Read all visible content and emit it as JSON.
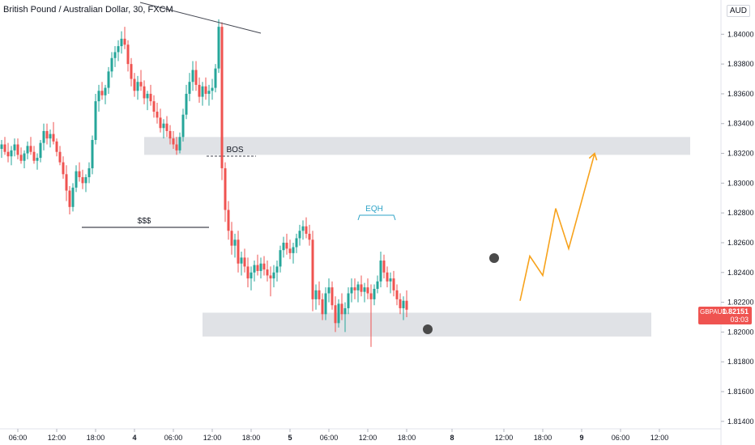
{
  "chart_data": {
    "type": "candlestick",
    "title": "British Pound / Australian Dollar, 30, FXCM",
    "symbol": "GBPAUD",
    "currency": "AUD",
    "last_price": "1.82151",
    "countdown": "03:03",
    "ylim": [
      1.8135,
      1.8423
    ],
    "y_ticks": [
      "1.84000",
      "1.83800",
      "1.83600",
      "1.83400",
      "1.83200",
      "1.83000",
      "1.82800",
      "1.82600",
      "1.82400",
      "1.82200",
      "1.82000",
      "1.81800",
      "1.81600",
      "1.81400"
    ],
    "y_tick_values": [
      1.84,
      1.838,
      1.836,
      1.834,
      1.832,
      1.83,
      1.828,
      1.826,
      1.824,
      1.822,
      1.82,
      1.818,
      1.816,
      1.814
    ],
    "x_ticks": [
      "06:00",
      "12:00",
      "18:00",
      "4",
      "06:00",
      "12:00",
      "18:00",
      "5",
      "06:00",
      "12:00",
      "18:00",
      "8",
      "12:00",
      "18:00",
      "9",
      "06:00",
      "12:00"
    ],
    "x_tick_index": [
      5,
      17,
      29,
      41,
      53,
      65,
      77,
      89,
      101,
      113,
      125,
      139,
      155,
      167,
      179,
      191,
      203
    ],
    "zones": [
      {
        "label": "BOS zone",
        "from": 1.8319,
        "to": 1.8331
      },
      {
        "label": "demand zone",
        "from": 1.8197,
        "to": 1.8213
      }
    ],
    "annotations": [
      "BOS",
      "EQH",
      "$$$"
    ],
    "projection_path": [
      [
        160,
        1.8221
      ],
      [
        163,
        1.8251
      ],
      [
        167,
        1.8238
      ],
      [
        171,
        1.8283
      ],
      [
        175,
        1.8256
      ],
      [
        183,
        1.832
      ]
    ],
    "candles": [
      [
        1.8323,
        1.8329,
        1.8317,
        1.8326
      ],
      [
        1.8326,
        1.8331,
        1.8319,
        1.8321
      ],
      [
        1.8321,
        1.8327,
        1.8314,
        1.8318
      ],
      [
        1.8318,
        1.8325,
        1.8312,
        1.8322
      ],
      [
        1.8322,
        1.833,
        1.8318,
        1.8326
      ],
      [
        1.8326,
        1.833,
        1.8316,
        1.8319
      ],
      [
        1.8319,
        1.8324,
        1.8313,
        1.8315
      ],
      [
        1.8315,
        1.8322,
        1.831,
        1.832
      ],
      [
        1.832,
        1.8328,
        1.8316,
        1.8325
      ],
      [
        1.8325,
        1.8331,
        1.8319,
        1.8321
      ],
      [
        1.8321,
        1.8325,
        1.8313,
        1.8315
      ],
      [
        1.8315,
        1.832,
        1.8309,
        1.8317
      ],
      [
        1.8317,
        1.8329,
        1.8314,
        1.8327
      ],
      [
        1.8327,
        1.834,
        1.8322,
        1.8335
      ],
      [
        1.8335,
        1.834,
        1.8326,
        1.833
      ],
      [
        1.833,
        1.8336,
        1.8324,
        1.8333
      ],
      [
        1.8333,
        1.8341,
        1.8326,
        1.8328
      ],
      [
        1.8328,
        1.833,
        1.8318,
        1.8321
      ],
      [
        1.8321,
        1.8325,
        1.8312,
        1.8314
      ],
      [
        1.8314,
        1.8318,
        1.8303,
        1.8306
      ],
      [
        1.8306,
        1.8312,
        1.8288,
        1.8295
      ],
      [
        1.8295,
        1.8298,
        1.8279,
        1.8284
      ],
      [
        1.8284,
        1.83,
        1.8281,
        1.8297
      ],
      [
        1.8297,
        1.8312,
        1.8294,
        1.8308
      ],
      [
        1.8308,
        1.8314,
        1.8301,
        1.8304
      ],
      [
        1.8304,
        1.8309,
        1.8296,
        1.83
      ],
      [
        1.83,
        1.8306,
        1.8294,
        1.8304
      ],
      [
        1.8304,
        1.8314,
        1.83,
        1.831
      ],
      [
        1.831,
        1.8332,
        1.8306,
        1.8329
      ],
      [
        1.8329,
        1.836,
        1.8326,
        1.8355
      ],
      [
        1.8355,
        1.8366,
        1.8348,
        1.8362
      ],
      [
        1.8362,
        1.8368,
        1.8356,
        1.8359
      ],
      [
        1.8359,
        1.8366,
        1.8353,
        1.8364
      ],
      [
        1.8364,
        1.8378,
        1.836,
        1.8375
      ],
      [
        1.8375,
        1.8388,
        1.8371,
        1.8384
      ],
      [
        1.8384,
        1.8392,
        1.8378,
        1.8388
      ],
      [
        1.8388,
        1.8396,
        1.8382,
        1.8392
      ],
      [
        1.8392,
        1.8402,
        1.8387,
        1.8397
      ],
      [
        1.8397,
        1.8405,
        1.839,
        1.8393
      ],
      [
        1.8393,
        1.8396,
        1.8375,
        1.838
      ],
      [
        1.838,
        1.8384,
        1.8365,
        1.837
      ],
      [
        1.837,
        1.8374,
        1.8358,
        1.8362
      ],
      [
        1.8362,
        1.8372,
        1.8356,
        1.8368
      ],
      [
        1.8368,
        1.8376,
        1.8362,
        1.8365
      ],
      [
        1.8365,
        1.8369,
        1.8353,
        1.8357
      ],
      [
        1.8357,
        1.8362,
        1.8349,
        1.836
      ],
      [
        1.836,
        1.8366,
        1.8352,
        1.8355
      ],
      [
        1.8355,
        1.8359,
        1.8344,
        1.8348
      ],
      [
        1.8348,
        1.8354,
        1.834,
        1.8344
      ],
      [
        1.8344,
        1.835,
        1.8334,
        1.8337
      ],
      [
        1.8337,
        1.8343,
        1.833,
        1.834
      ],
      [
        1.834,
        1.8345,
        1.8331,
        1.8335
      ],
      [
        1.8335,
        1.8339,
        1.8326,
        1.833
      ],
      [
        1.833,
        1.8335,
        1.8323,
        1.8326
      ],
      [
        1.8326,
        1.8331,
        1.8319,
        1.8322
      ],
      [
        1.8322,
        1.8334,
        1.832,
        1.8331
      ],
      [
        1.8331,
        1.835,
        1.8328,
        1.8346
      ],
      [
        1.8346,
        1.8366,
        1.8343,
        1.836
      ],
      [
        1.836,
        1.8374,
        1.8355,
        1.8368
      ],
      [
        1.8368,
        1.8382,
        1.8362,
        1.8376
      ],
      [
        1.8376,
        1.8382,
        1.8362,
        1.8366
      ],
      [
        1.8366,
        1.8371,
        1.8354,
        1.8358
      ],
      [
        1.8358,
        1.8368,
        1.8352,
        1.8365
      ],
      [
        1.8365,
        1.8371,
        1.8356,
        1.836
      ],
      [
        1.836,
        1.8366,
        1.8352,
        1.8362
      ],
      [
        1.8362,
        1.837,
        1.8356,
        1.8364
      ],
      [
        1.8364,
        1.838,
        1.8361,
        1.8377
      ],
      [
        1.8377,
        1.841,
        1.8374,
        1.8405
      ],
      [
        1.8405,
        1.8408,
        1.8302,
        1.831
      ],
      [
        1.831,
        1.8314,
        1.8274,
        1.8282
      ],
      [
        1.8282,
        1.8288,
        1.8262,
        1.8268
      ],
      [
        1.8268,
        1.8274,
        1.8252,
        1.8258
      ],
      [
        1.8258,
        1.8266,
        1.825,
        1.8262
      ],
      [
        1.8262,
        1.8268,
        1.824,
        1.8246
      ],
      [
        1.8246,
        1.8254,
        1.8238,
        1.825
      ],
      [
        1.825,
        1.8256,
        1.824,
        1.8244
      ],
      [
        1.8244,
        1.825,
        1.823,
        1.8236
      ],
      [
        1.8236,
        1.8244,
        1.8228,
        1.824
      ],
      [
        1.824,
        1.8248,
        1.8234,
        1.8245
      ],
      [
        1.8245,
        1.8252,
        1.8238,
        1.8241
      ],
      [
        1.8241,
        1.825,
        1.8236,
        1.8246
      ],
      [
        1.8246,
        1.8251,
        1.8238,
        1.8242
      ],
      [
        1.8242,
        1.8248,
        1.8234,
        1.8238
      ],
      [
        1.8238,
        1.8244,
        1.8224,
        1.8236
      ],
      [
        1.8236,
        1.8245,
        1.823,
        1.824
      ],
      [
        1.824,
        1.8248,
        1.8234,
        1.8244
      ],
      [
        1.8244,
        1.8258,
        1.824,
        1.8255
      ],
      [
        1.8255,
        1.8264,
        1.825,
        1.826
      ],
      [
        1.826,
        1.8266,
        1.8252,
        1.8256
      ],
      [
        1.8256,
        1.8262,
        1.8249,
        1.8253
      ],
      [
        1.8253,
        1.826,
        1.8246,
        1.8257
      ],
      [
        1.8257,
        1.8266,
        1.8253,
        1.8263
      ],
      [
        1.8263,
        1.8272,
        1.8258,
        1.8268
      ],
      [
        1.8268,
        1.8275,
        1.8262,
        1.8271
      ],
      [
        1.8271,
        1.8277,
        1.8263,
        1.8266
      ],
      [
        1.8266,
        1.8272,
        1.8258,
        1.8262
      ],
      [
        1.8262,
        1.8268,
        1.8214,
        1.8222
      ],
      [
        1.8222,
        1.8232,
        1.8215,
        1.8228
      ],
      [
        1.8228,
        1.8234,
        1.8218,
        1.8222
      ],
      [
        1.8222,
        1.8226,
        1.8208,
        1.8212
      ],
      [
        1.8212,
        1.823,
        1.8208,
        1.8226
      ],
      [
        1.8226,
        1.8236,
        1.822,
        1.823
      ],
      [
        1.823,
        1.8234,
        1.8215,
        1.8218
      ],
      [
        1.8218,
        1.8224,
        1.82,
        1.8206
      ],
      [
        1.8206,
        1.8222,
        1.8203,
        1.8219
      ],
      [
        1.8219,
        1.8226,
        1.8208,
        1.8212
      ],
      [
        1.8212,
        1.822,
        1.82,
        1.8216
      ],
      [
        1.8216,
        1.823,
        1.8212,
        1.8226
      ],
      [
        1.8226,
        1.8236,
        1.822,
        1.823
      ],
      [
        1.823,
        1.8236,
        1.8222,
        1.8228
      ],
      [
        1.8228,
        1.8234,
        1.822,
        1.8232
      ],
      [
        1.8232,
        1.8238,
        1.8224,
        1.8227
      ],
      [
        1.8227,
        1.8233,
        1.822,
        1.823
      ],
      [
        1.823,
        1.8236,
        1.8222,
        1.8226
      ],
      [
        1.8226,
        1.8232,
        1.819,
        1.8222
      ],
      [
        1.8222,
        1.8232,
        1.8218,
        1.8229
      ],
      [
        1.8229,
        1.8238,
        1.8226,
        1.8234
      ],
      [
        1.8234,
        1.8254,
        1.823,
        1.8248
      ],
      [
        1.8248,
        1.8252,
        1.8236,
        1.824
      ],
      [
        1.824,
        1.8244,
        1.823,
        1.8234
      ],
      [
        1.8234,
        1.824,
        1.8226,
        1.8236
      ],
      [
        1.8236,
        1.8241,
        1.8224,
        1.8228
      ],
      [
        1.8228,
        1.8232,
        1.8218,
        1.8222
      ],
      [
        1.8222,
        1.8226,
        1.8212,
        1.8216
      ],
      [
        1.8216,
        1.8224,
        1.8208,
        1.8221
      ],
      [
        1.8221,
        1.8228,
        1.821,
        1.8215
      ]
    ]
  }
}
